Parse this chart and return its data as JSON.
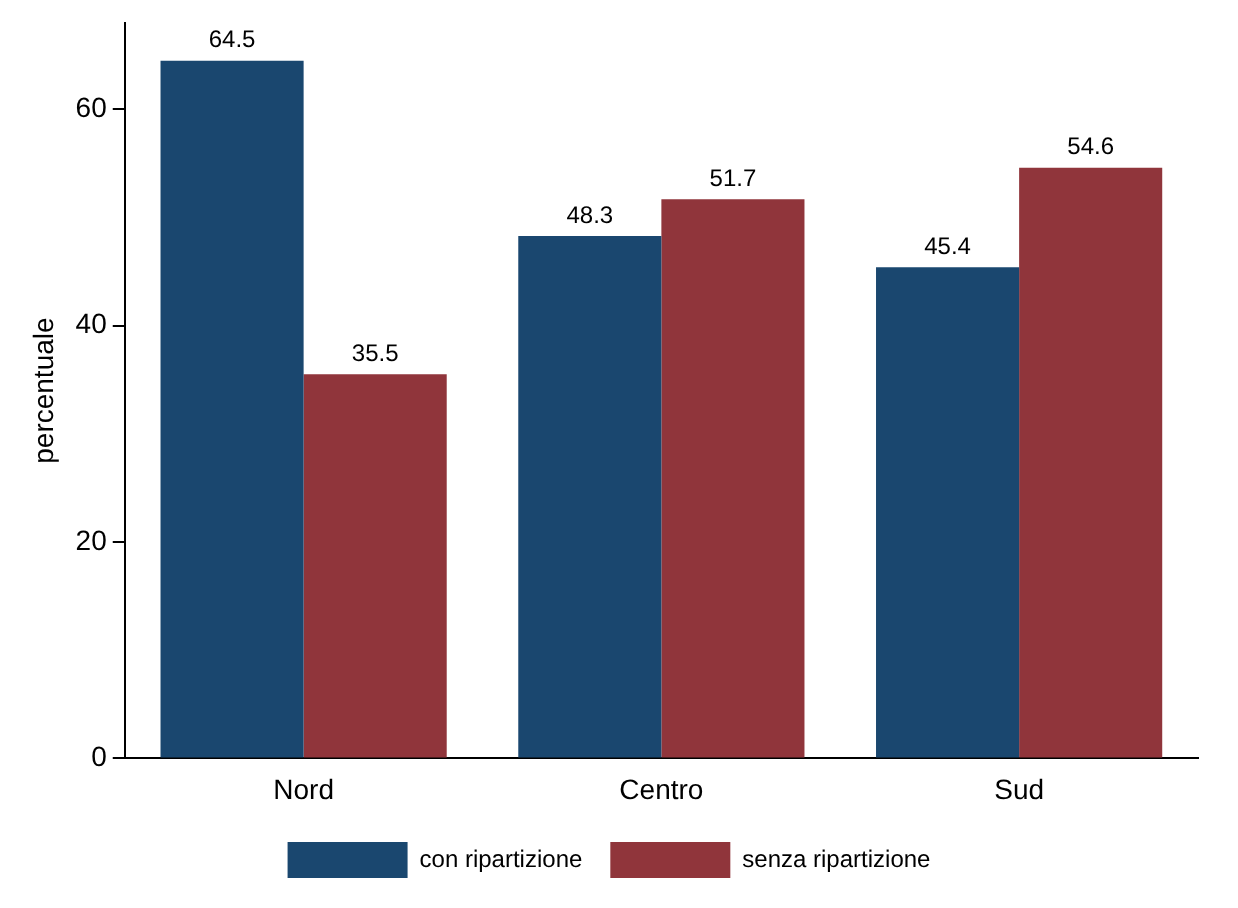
{
  "chart_data": {
    "type": "bar",
    "ylabel": "percentuale",
    "categories": [
      "Nord",
      "Centro",
      "Sud"
    ],
    "series": [
      {
        "name": "con ripartizione",
        "color": "#1a476f",
        "values": [
          64.5,
          48.3,
          45.4
        ]
      },
      {
        "name": "senza ripartizione",
        "color": "#90353b",
        "values": [
          35.5,
          51.7,
          54.6
        ]
      }
    ],
    "ylim": [
      0,
      68
    ],
    "yticks": [
      0,
      20,
      40,
      60
    ],
    "grid": false,
    "legend": "bottom",
    "data_labels": true
  }
}
